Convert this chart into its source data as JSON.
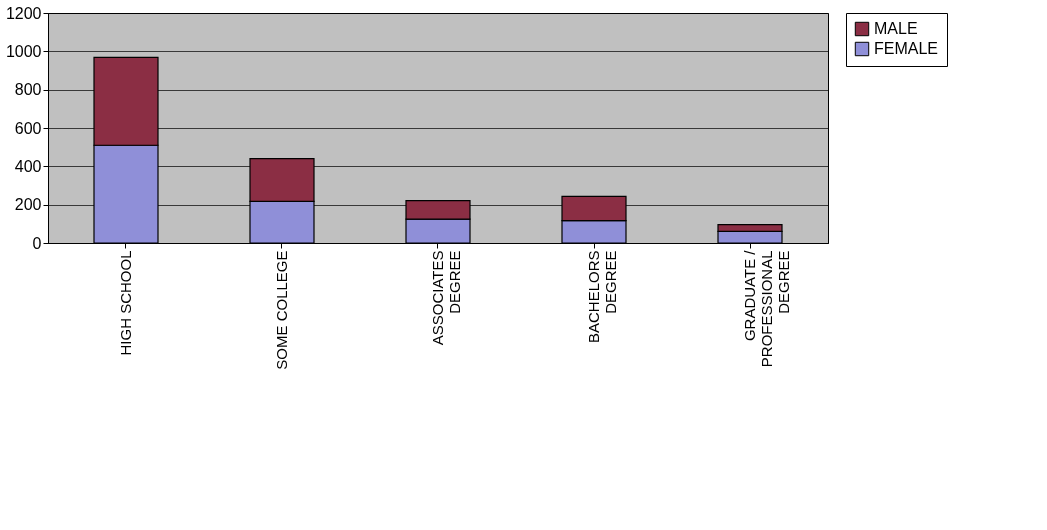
{
  "chart_data": {
    "type": "bar",
    "stacked": true,
    "categories": [
      "HIGH SCHOOL",
      "SOME COLLEGE",
      "ASSOCIATES\nDEGREE",
      "BACHELORS\nDEGREE",
      "GRADUATE /\nPROFESSIONAL\nDEGREE"
    ],
    "series": [
      {
        "name": "FEMALE",
        "color": "#8f8fd8",
        "values": [
          510,
          217,
          125,
          117,
          61
        ]
      },
      {
        "name": "MALE",
        "color": "#8b2e44",
        "values": [
          459,
          223,
          96,
          126,
          35
        ]
      }
    ],
    "ylim": [
      0,
      1200
    ],
    "yticks": [
      0,
      200,
      400,
      600,
      800,
      1000,
      1200
    ],
    "grid": "y",
    "legend": "right"
  }
}
